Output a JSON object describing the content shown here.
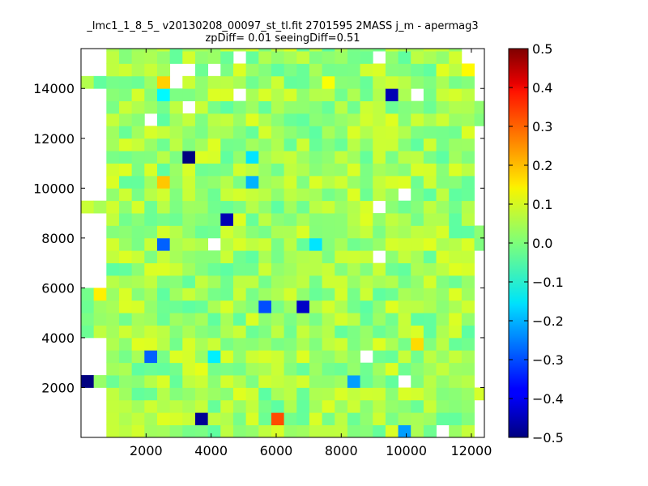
{
  "chart_data": {
    "type": "heatmap",
    "title_line1": "_lmc1_1_8_5_ v20130208_00097_st_tl.fit 2701595 2MASS j_m - apermag3",
    "title_line2": "zpDiff= 0.01 seeingDiff=0.51",
    "xlabel": "",
    "ylabel": "",
    "xlim": [
      0,
      12400
    ],
    "ylim": [
      0,
      15600
    ],
    "x_ticks": [
      2000,
      4000,
      6000,
      8000,
      10000,
      12000
    ],
    "y_ticks": [
      2000,
      4000,
      6000,
      8000,
      10000,
      12000,
      14000
    ],
    "colormap": "jet",
    "vmin": -0.5,
    "vmax": 0.5,
    "colorbar_ticks": [
      "0.5",
      "0.4",
      "0.3",
      "0.2",
      "0.1",
      "0.0",
      "−0.1",
      "−0.2",
      "−0.3",
      "−0.4",
      "−0.5"
    ],
    "colorbar_tick_values": [
      0.5,
      0.4,
      0.3,
      0.2,
      0.1,
      0.0,
      -0.1,
      -0.2,
      -0.3,
      -0.4,
      -0.5
    ],
    "background_level": 0.03,
    "cell_size": [
      390,
      500
    ],
    "outlier_cells": [
      {
        "x": 200,
        "y": 2200,
        "value": -0.5
      },
      {
        "x": 3800,
        "y": 800,
        "value": -0.48
      },
      {
        "x": 4600,
        "y": 8950,
        "value": -0.45
      },
      {
        "x": 3350,
        "y": 11450,
        "value": -0.5
      },
      {
        "x": 9700,
        "y": 13550,
        "value": -0.45
      },
      {
        "x": 6850,
        "y": 5150,
        "value": -0.43
      },
      {
        "x": 5500,
        "y": 5150,
        "value": -0.3
      },
      {
        "x": 2600,
        "y": 7950,
        "value": -0.28
      },
      {
        "x": 2150,
        "y": 3200,
        "value": -0.28
      },
      {
        "x": 8400,
        "y": 2200,
        "value": -0.22
      },
      {
        "x": 10000,
        "y": 300,
        "value": -0.22
      },
      {
        "x": 5450,
        "y": 10450,
        "value": -0.2
      },
      {
        "x": 5450,
        "y": 11450,
        "value": -0.15
      },
      {
        "x": 7250,
        "y": 7950,
        "value": -0.15
      },
      {
        "x": 3950,
        "y": 3200,
        "value": -0.14
      },
      {
        "x": 2600,
        "y": 13550,
        "value": -0.13
      },
      {
        "x": 6050,
        "y": 800,
        "value": 0.3
      },
      {
        "x": 2600,
        "y": 10450,
        "value": 0.18
      },
      {
        "x": 2600,
        "y": 14050,
        "value": 0.17
      },
      {
        "x": 10250,
        "y": 3700,
        "value": 0.16
      },
      {
        "x": 650,
        "y": 5700,
        "value": 0.14
      },
      {
        "x": 11800,
        "y": 14550,
        "value": 0.13
      },
      {
        "x": 7450,
        "y": 14050,
        "value": 0.12
      },
      {
        "x": 3550,
        "y": 2700,
        "value": 0.1
      }
    ],
    "missing_cells": [
      {
        "x": 350,
        "y": 15300
      },
      {
        "x": 3000,
        "y": 14800
      },
      {
        "x": 3450,
        "y": 14800
      },
      {
        "x": 4050,
        "y": 14800
      },
      {
        "x": 4800,
        "y": 15300
      },
      {
        "x": 9300,
        "y": 15300
      },
      {
        "x": 3050,
        "y": 14300
      },
      {
        "x": 5050,
        "y": 13550
      },
      {
        "x": 10450,
        "y": 13550
      },
      {
        "x": 3450,
        "y": 13050
      },
      {
        "x": 2200,
        "y": 12550
      },
      {
        "x": 10050,
        "y": 9950
      },
      {
        "x": 9300,
        "y": 9450
      },
      {
        "x": 4200,
        "y": 7950
      },
      {
        "x": 9300,
        "y": 7450
      },
      {
        "x": 8700,
        "y": 3200
      },
      {
        "x": 9750,
        "y": 2200
      },
      {
        "x": 11150,
        "y": 300
      }
    ]
  }
}
